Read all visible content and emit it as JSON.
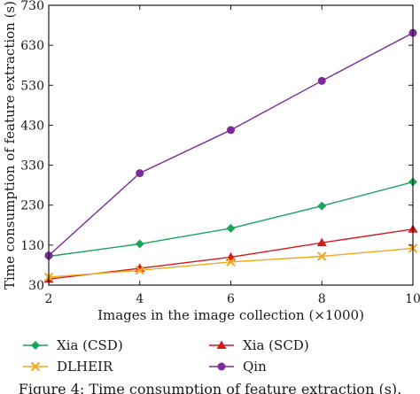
{
  "chart_data": {
    "type": "line",
    "title": "",
    "xlabel": "Images in the image collection (×1000)",
    "ylabel": "Time consumption of feature extraction (s)",
    "x": [
      2,
      4,
      6,
      8,
      10
    ],
    "xticks": [
      "2",
      "4",
      "6",
      "8",
      "10"
    ],
    "yticks": [
      "30",
      "130",
      "230",
      "330",
      "430",
      "530",
      "630",
      "730"
    ],
    "xlim": [
      2,
      10
    ],
    "ylim": [
      30,
      730
    ],
    "grid": false,
    "legend_position": "below",
    "series": [
      {
        "name": "Xia (CSD)",
        "color": "#1aa35a",
        "marker": "diamond",
        "values": [
          102,
          133,
          172,
          228,
          288
        ]
      },
      {
        "name": "Xia (SCD)",
        "color": "#d6191b",
        "marker": "triangle",
        "values": [
          45,
          72,
          100,
          136,
          170
        ]
      },
      {
        "name": "DLHEIR",
        "color": "#f2a81d",
        "marker": "x",
        "values": [
          50,
          67,
          88,
          102,
          122
        ]
      },
      {
        "name": "Qin",
        "color": "#7b2b9c",
        "marker": "circle",
        "values": [
          104,
          310,
          418,
          541,
          661
        ]
      }
    ]
  },
  "caption": "Figure 4: Time consumption of feature extraction (s)."
}
